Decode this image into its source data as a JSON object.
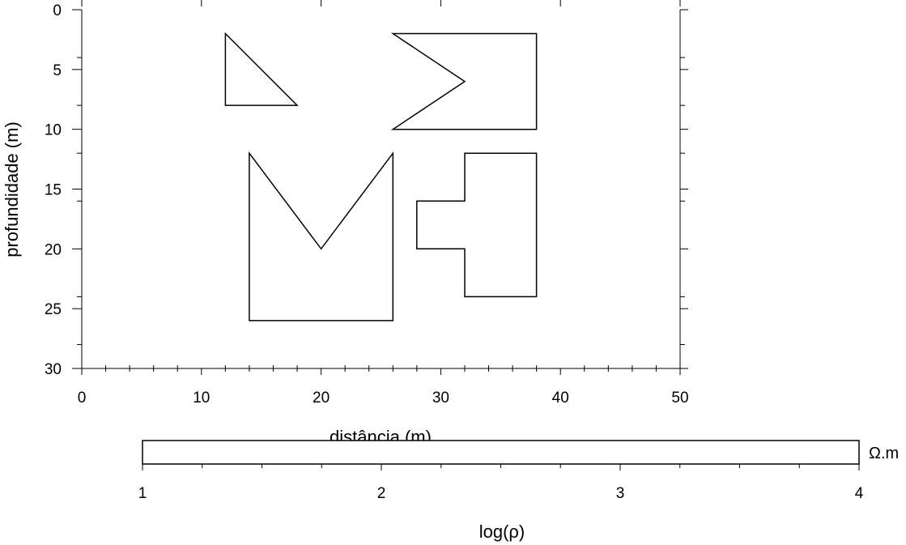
{
  "chart_data": [
    {
      "type": "polygon",
      "xlabel": "distância (m)",
      "ylabel": "profundidade (m)",
      "xlim": [
        0,
        50
      ],
      "ylim": [
        0,
        30
      ],
      "y_inverted": true,
      "xticks": [
        0,
        10,
        20,
        30,
        40,
        50
      ],
      "yticks": [
        0,
        5,
        10,
        15,
        20,
        25,
        30
      ],
      "x_minor_step": 2,
      "y_minor_step": 4,
      "grid": false,
      "series": [
        {
          "values": [
            [
              12,
              2
            ],
            [
              18,
              8
            ],
            [
              12,
              8
            ]
          ]
        },
        {
          "values": [
            [
              26,
              2
            ],
            [
              38,
              2
            ],
            [
              38,
              10
            ],
            [
              26,
              10
            ],
            [
              32,
              6
            ]
          ]
        },
        {
          "values": [
            [
              14,
              12
            ],
            [
              20,
              20
            ],
            [
              26,
              12
            ],
            [
              26,
              26
            ],
            [
              14,
              26
            ]
          ]
        },
        {
          "values": [
            [
              32,
              12
            ],
            [
              38,
              12
            ],
            [
              38,
              24
            ],
            [
              32,
              24
            ],
            [
              32,
              20
            ],
            [
              28,
              20
            ],
            [
              28,
              16
            ],
            [
              32,
              16
            ]
          ]
        }
      ]
    },
    {
      "type": "colorbar",
      "xlabel": "log(ρ)",
      "unit_label": "Ω.m",
      "xlim": [
        1,
        4
      ],
      "xticks": [
        1,
        2,
        3,
        4
      ],
      "minor_step": 0.25
    }
  ]
}
